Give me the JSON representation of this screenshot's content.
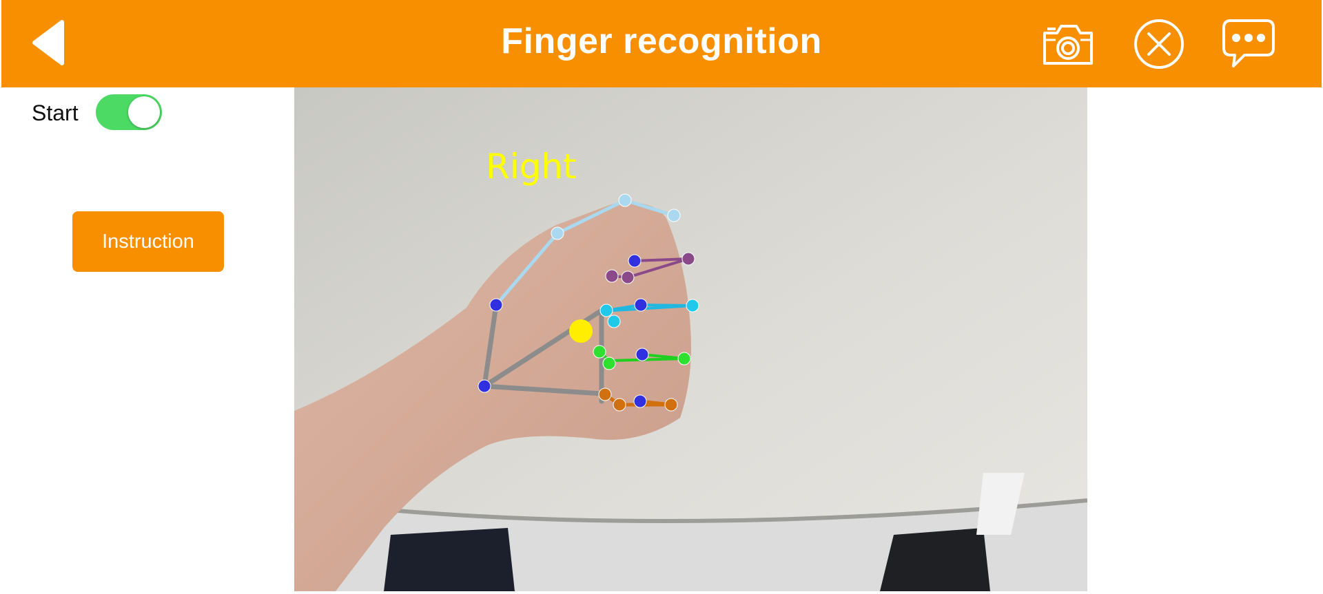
{
  "header": {
    "title": "Finger recognition",
    "background_color": "#f78f00",
    "back_icon": "back-triangle-icon",
    "camera_icon": "camera-icon",
    "close_icon": "close-circle-icon",
    "chat_icon": "chat-bubble-icon"
  },
  "controls": {
    "start_label": "Start",
    "start_on": true,
    "toggle_color": "#4cd964",
    "instruction_label": "Instruction"
  },
  "camera": {
    "hand_label": "Right",
    "hand_label_color": "#ffff00"
  }
}
